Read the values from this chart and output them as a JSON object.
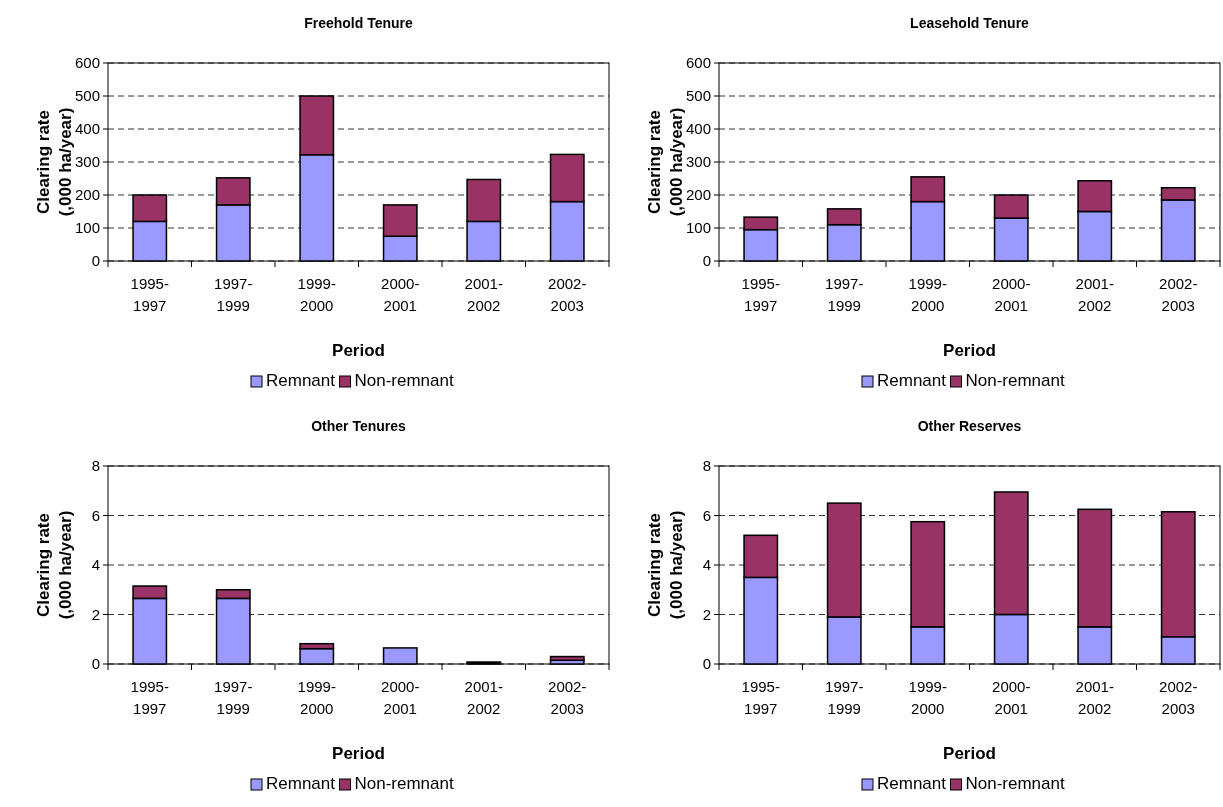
{
  "chart_data": [
    {
      "type": "bar",
      "title": "Freehold Tenure",
      "xlabel": "Period",
      "ylabel": "Clearing rate\n(,000 ha/year)",
      "categories": [
        "1995-1997",
        "1997-1999",
        "1999-2000",
        "2000-2001",
        "2001-2002",
        "2002-2003"
      ],
      "stacked": true,
      "series": [
        {
          "name": "Remnant",
          "color": "#9999ff",
          "values": [
            120,
            170,
            322,
            75,
            120,
            180
          ]
        },
        {
          "name": "Non-remnant",
          "color": "#993366",
          "values": [
            80,
            82,
            178,
            95,
            127,
            143
          ]
        }
      ],
      "ylim": [
        0,
        600
      ],
      "yticks": [
        0,
        100,
        200,
        300,
        400,
        500,
        600
      ],
      "grid": "y",
      "legend": "bottom"
    },
    {
      "type": "bar",
      "title": "Leasehold Tenure",
      "xlabel": "Period",
      "ylabel": "Clearing rate\n(,000 ha/year)",
      "categories": [
        "1995-1997",
        "1997-1999",
        "1999-2000",
        "2000-2001",
        "2001-2002",
        "2002-2003"
      ],
      "stacked": true,
      "series": [
        {
          "name": "Remnant",
          "color": "#9999ff",
          "values": [
            95,
            110,
            180,
            130,
            150,
            185
          ]
        },
        {
          "name": "Non-remnant",
          "color": "#993366",
          "values": [
            38,
            48,
            75,
            70,
            93,
            37
          ]
        }
      ],
      "ylim": [
        0,
        600
      ],
      "yticks": [
        0,
        100,
        200,
        300,
        400,
        500,
        600
      ],
      "grid": "y",
      "legend": "bottom"
    },
    {
      "type": "bar",
      "title": "Other Tenures",
      "xlabel": "Period",
      "ylabel": "Clearing rate\n(,000 ha/year)",
      "categories": [
        "1995-1997",
        "1997-1999",
        "1999-2000",
        "2000-2001",
        "2001-2002",
        "2002-2003"
      ],
      "stacked": true,
      "series": [
        {
          "name": "Remnant",
          "color": "#9999ff",
          "values": [
            2.65,
            2.65,
            0.62,
            0.65,
            0.04,
            0.15
          ]
        },
        {
          "name": "Non-remnant",
          "color": "#993366",
          "values": [
            0.5,
            0.35,
            0.2,
            0,
            0.04,
            0.15
          ]
        }
      ],
      "ylim": [
        0,
        8
      ],
      "yticks": [
        0,
        2,
        4,
        6,
        8
      ],
      "grid": "y",
      "legend": "bottom"
    },
    {
      "type": "bar",
      "title": "Other Reserves",
      "xlabel": "Period",
      "ylabel": "Clearing rate\n(,000 ha/year)",
      "categories": [
        "1995-1997",
        "1997-1999",
        "1999-2000",
        "2000-2001",
        "2001-2002",
        "2002-2003"
      ],
      "stacked": true,
      "series": [
        {
          "name": "Remnant",
          "color": "#9999ff",
          "values": [
            3.5,
            1.9,
            1.5,
            2.0,
            1.5,
            1.1
          ]
        },
        {
          "name": "Non-remnant",
          "color": "#993366",
          "values": [
            1.7,
            4.6,
            4.25,
            4.95,
            4.75,
            5.05
          ]
        }
      ],
      "ylim": [
        0,
        8
      ],
      "yticks": [
        0,
        2,
        4,
        6,
        8
      ],
      "grid": "y",
      "legend": "bottom"
    }
  ]
}
